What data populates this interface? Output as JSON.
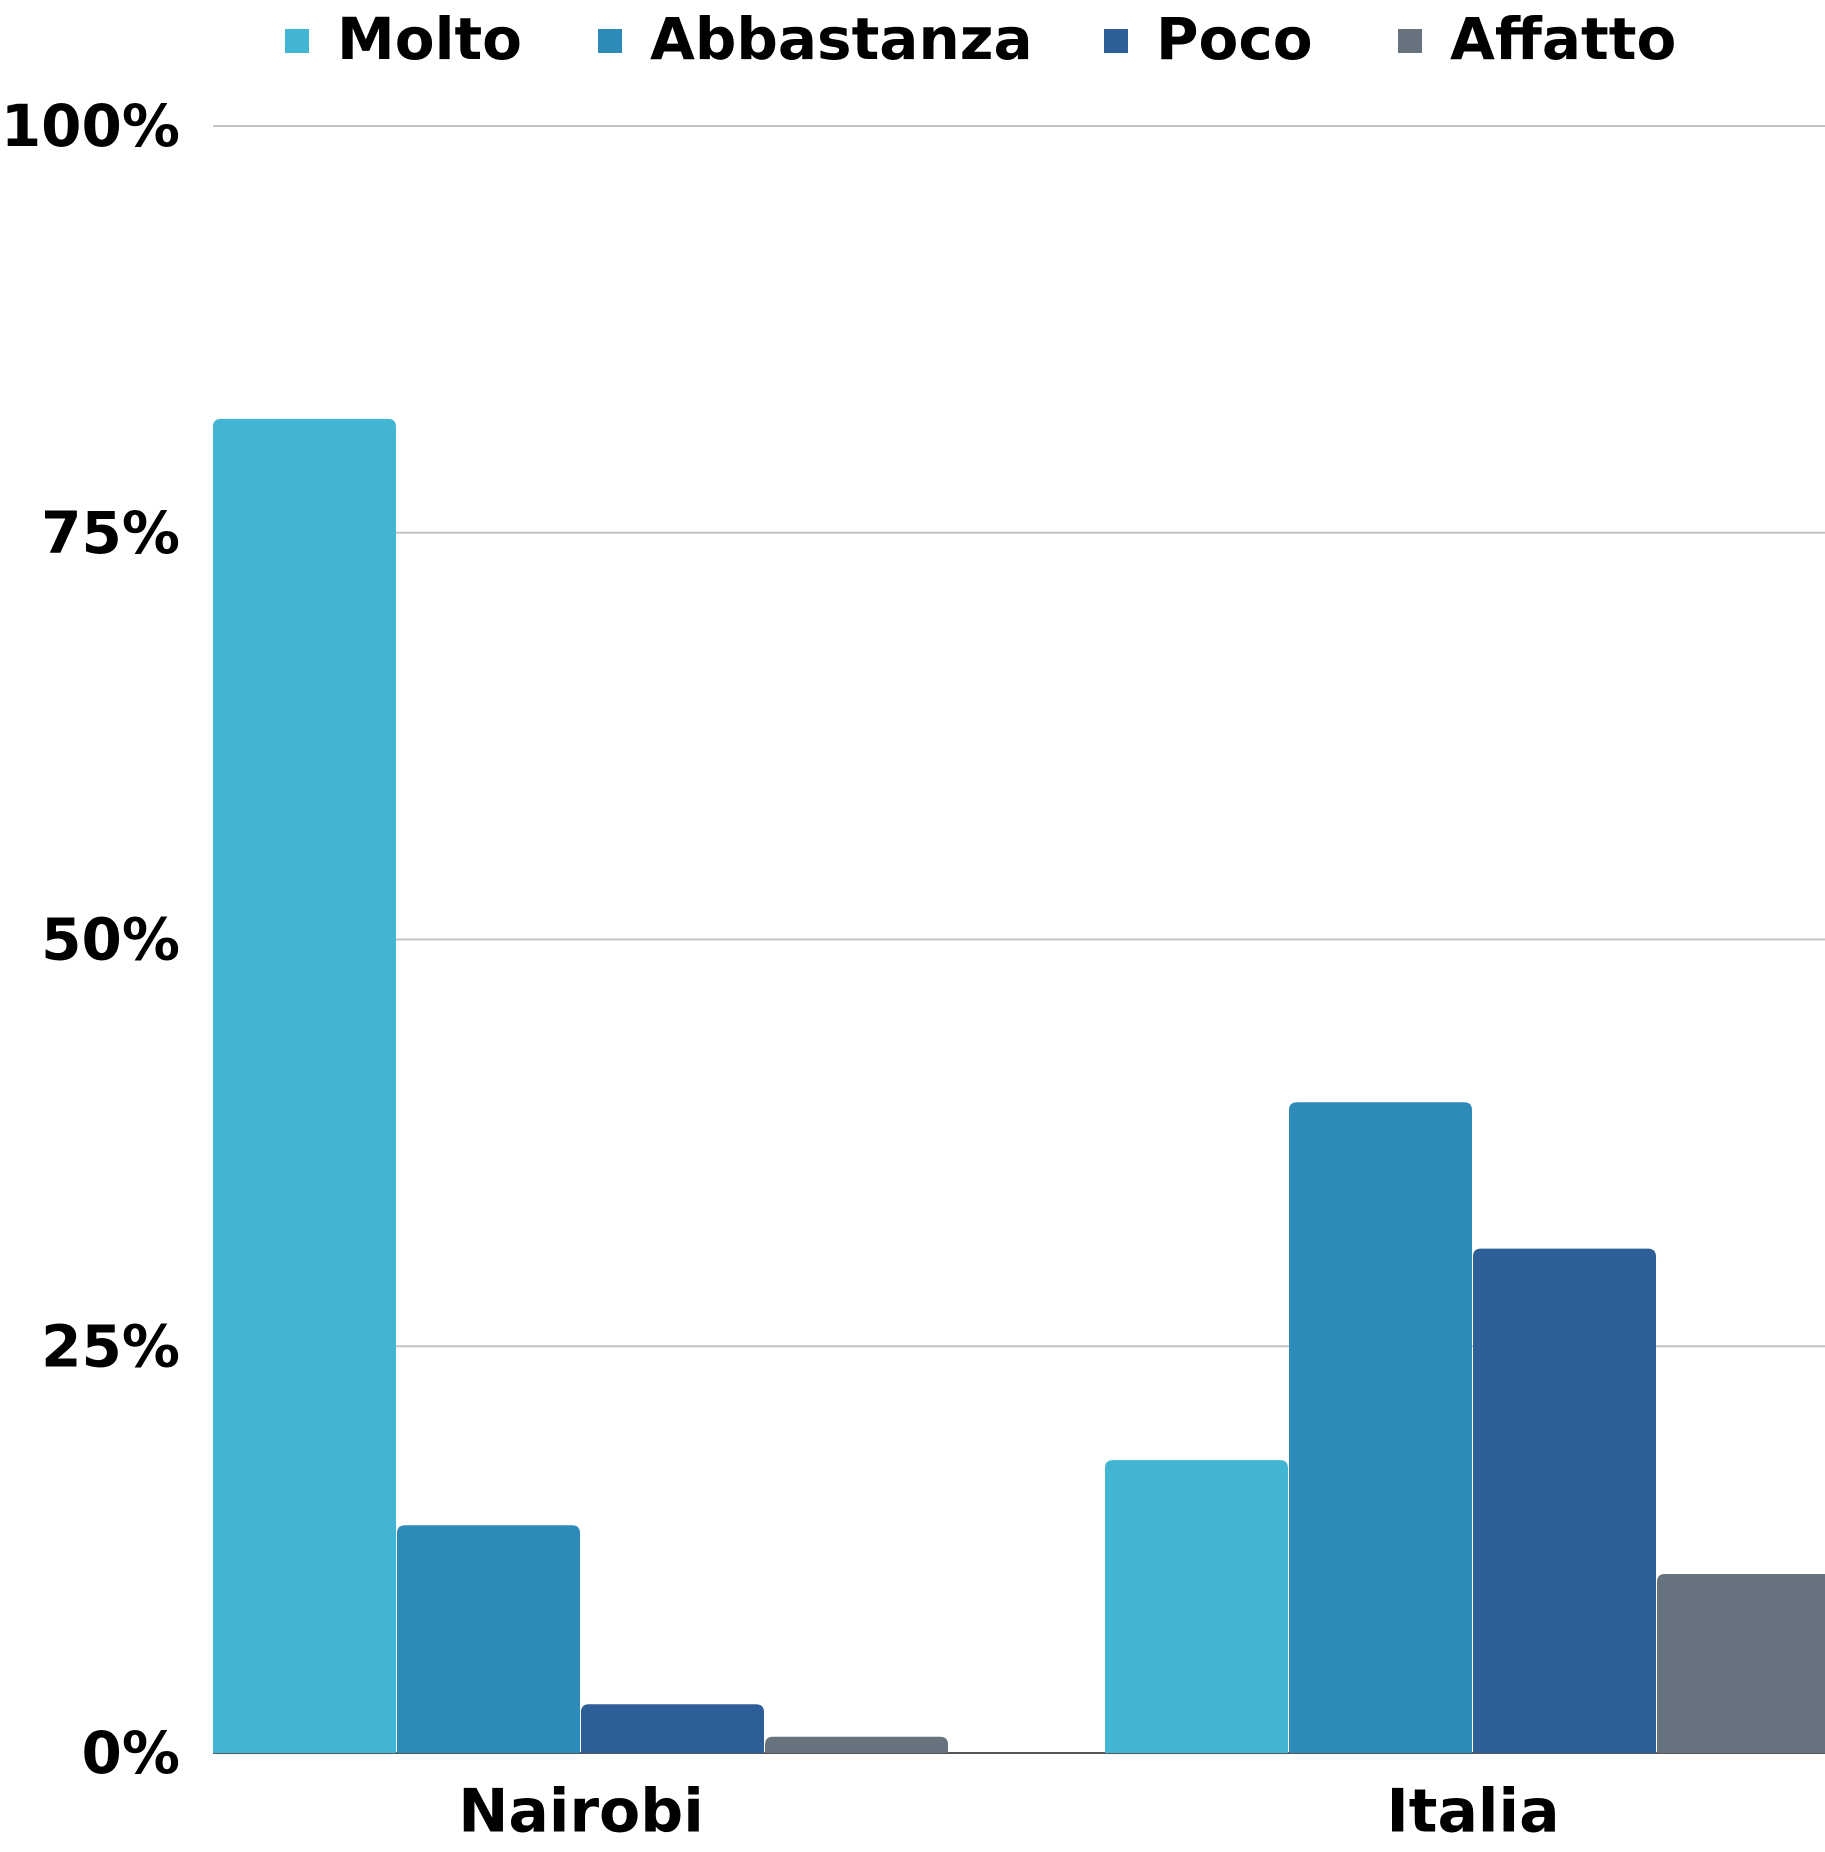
{
  "chart_data": {
    "type": "bar",
    "categories": [
      "Nairobi",
      "Italia"
    ],
    "series": [
      {
        "name": "Molto",
        "color": "#42b5d5",
        "values": [
          82,
          18
        ]
      },
      {
        "name": "Abbastanza",
        "color": "#2d8ab9",
        "values": [
          14,
          40
        ]
      },
      {
        "name": "Poco",
        "color": "#2e5e97",
        "values": [
          3,
          31
        ]
      },
      {
        "name": "Affatto",
        "color": "#67737f",
        "values": [
          1,
          11
        ]
      }
    ],
    "ylim": [
      0,
      100
    ],
    "yticks": [
      {
        "value": 0,
        "label": "0%"
      },
      {
        "value": 25,
        "label": "25%"
      },
      {
        "value": 50,
        "label": "50%"
      },
      {
        "value": 75,
        "label": "75%"
      },
      {
        "value": 100,
        "label": "100%"
      }
    ],
    "grid": true,
    "legend": "top"
  }
}
